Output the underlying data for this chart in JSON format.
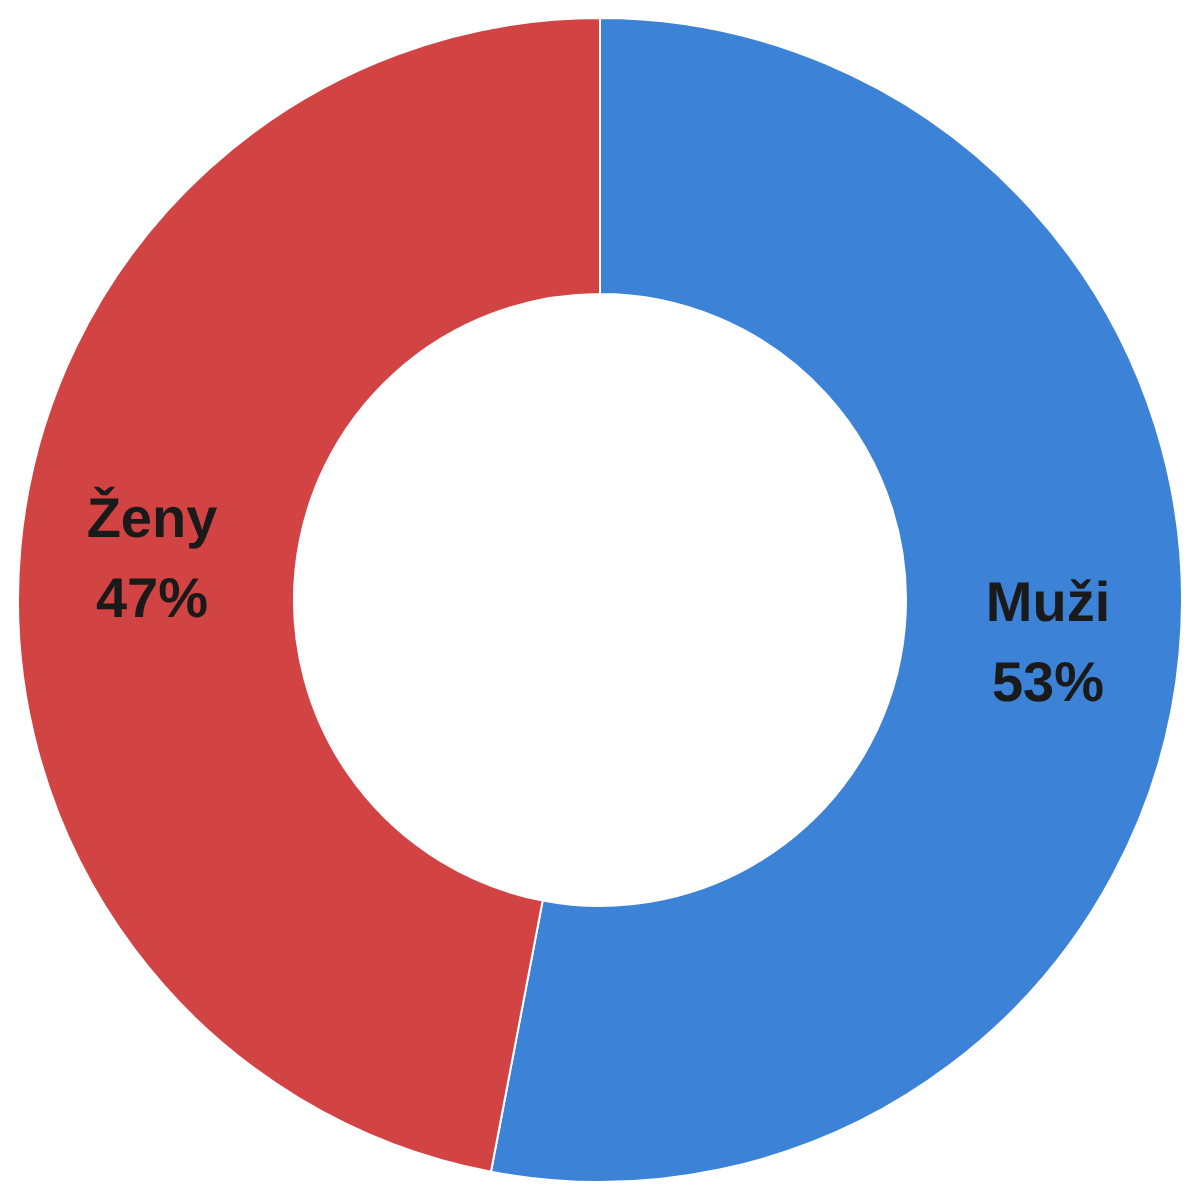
{
  "chart_data": {
    "type": "donut",
    "categories": [
      "Muži",
      "Ženy"
    ],
    "values": [
      53,
      47
    ],
    "colors": [
      "#3c82d6",
      "#d24444"
    ],
    "value_labels": [
      "53%",
      "47%"
    ],
    "legend": false
  }
}
